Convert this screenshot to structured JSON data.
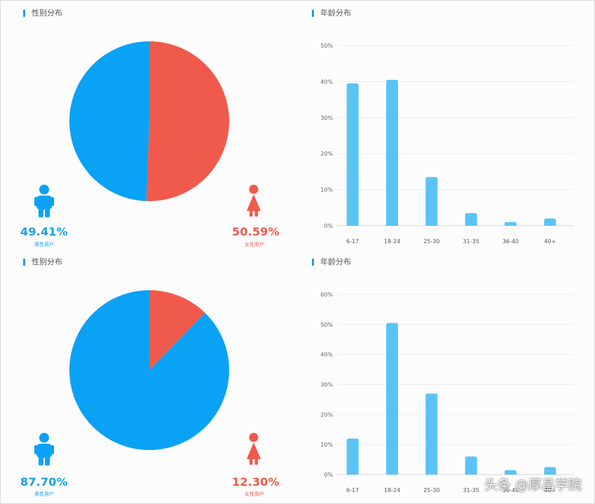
{
  "colors": {
    "male": "#0aa2f5",
    "female": "#f05a4b",
    "bar": "#5ac3f6",
    "title_accent": "#1aa0e8"
  },
  "watermark": "头条 @厚昌学院",
  "chart_data": [
    {
      "type": "pie",
      "title": "性别分布",
      "slices": [
        {
          "name": "女性用户",
          "value": 50.59,
          "label": "50.59%"
        },
        {
          "name": "男性用户",
          "value": 49.41,
          "label": "49.41%"
        }
      ]
    },
    {
      "type": "bar",
      "title": "年龄分布",
      "categories": [
        "6-17",
        "18-24",
        "25-30",
        "31-35",
        "36-40",
        "40+"
      ],
      "values": [
        39.5,
        40.5,
        13.5,
        3.5,
        1.0,
        2.0
      ],
      "ylim": [
        0,
        50
      ],
      "yticks": [
        "0%",
        "10%",
        "20%",
        "30%",
        "40%",
        "50%"
      ],
      "grid": true
    },
    {
      "type": "pie",
      "title": "性别分布",
      "slices": [
        {
          "name": "女性用户",
          "value": 12.3,
          "label": "12.30%"
        },
        {
          "name": "男性用户",
          "value": 87.7,
          "label": "87.70%"
        }
      ]
    },
    {
      "type": "bar",
      "title": "年龄分布",
      "categories": [
        "6-17",
        "18-24",
        "25-30",
        "31-35",
        "36-40",
        "40+"
      ],
      "values": [
        12.0,
        50.5,
        27.0,
        6.0,
        1.5,
        2.5
      ],
      "ylim": [
        0,
        60
      ],
      "yticks": [
        "0%",
        "10%",
        "20%",
        "30%",
        "40%",
        "50%",
        "60%"
      ],
      "grid": true
    }
  ]
}
